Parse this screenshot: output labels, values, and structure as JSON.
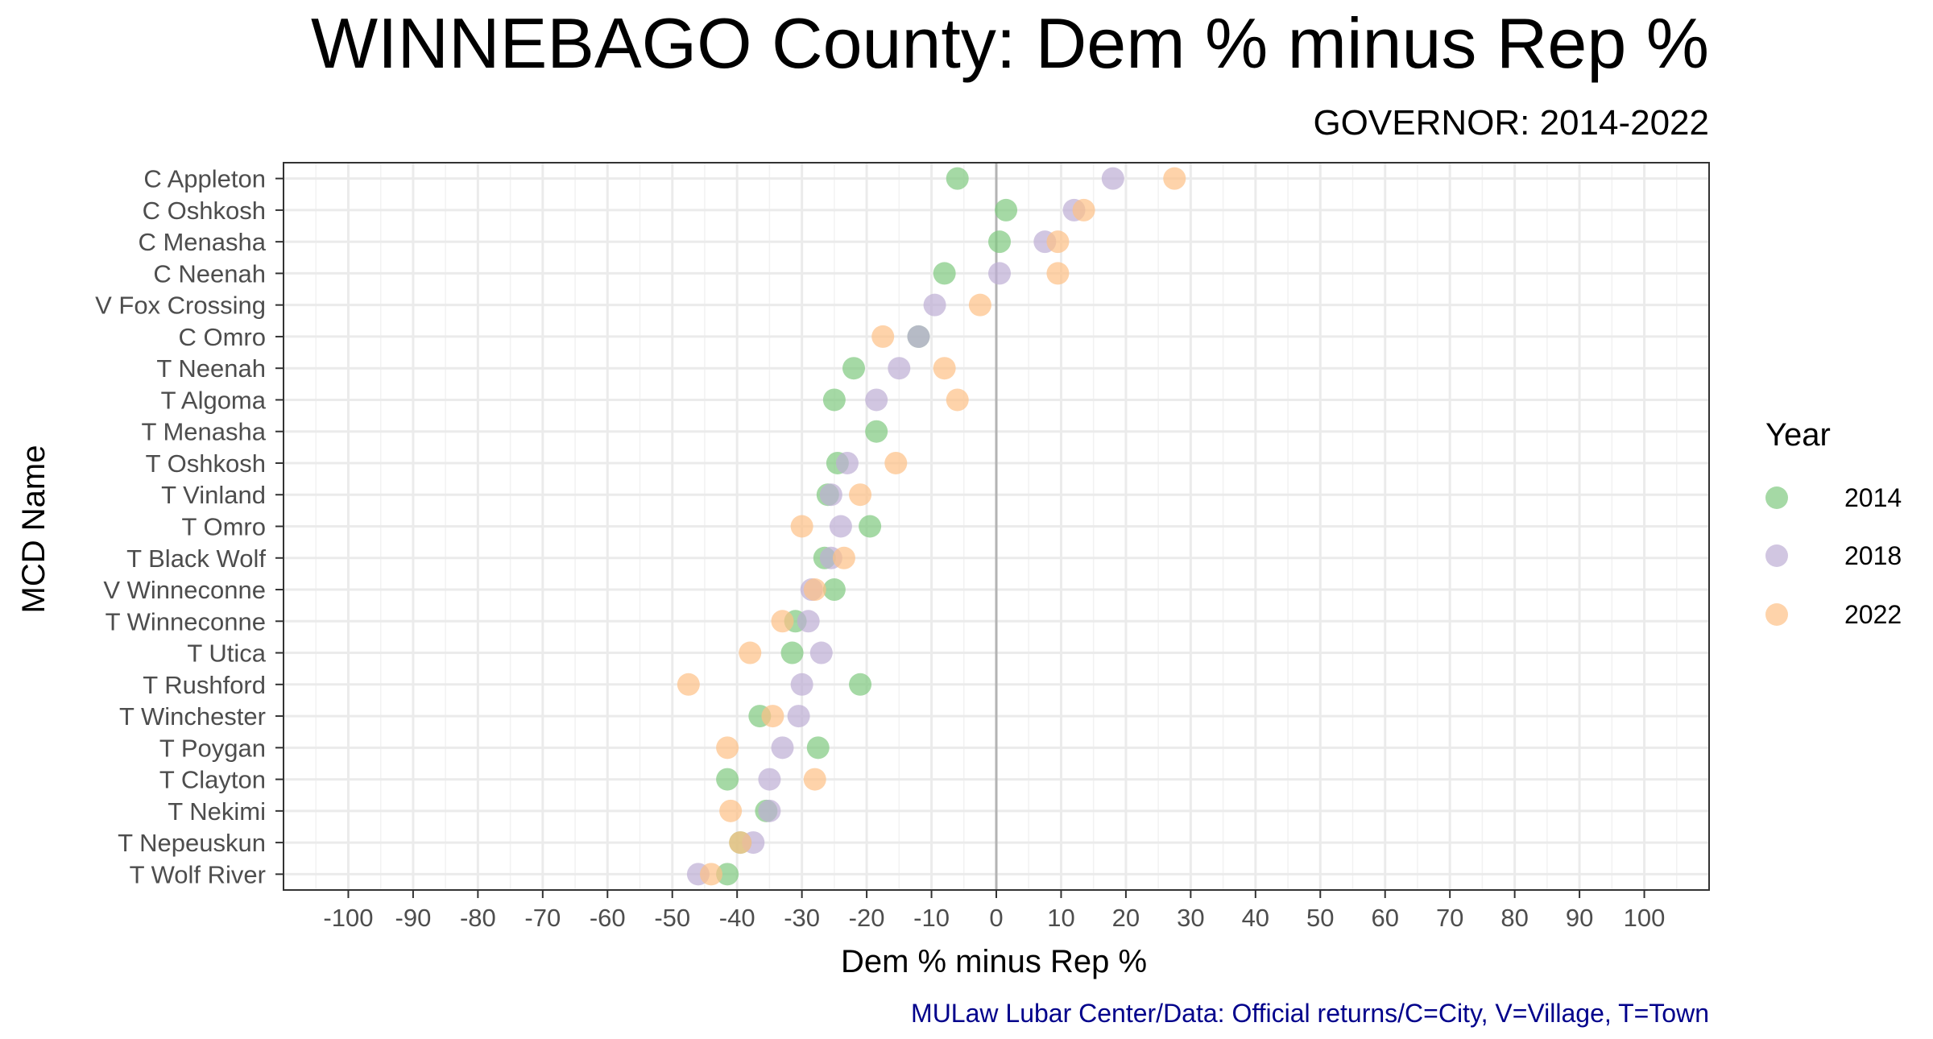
{
  "chart_data": {
    "type": "scatter",
    "title": "WINNEBAGO County: Dem % minus Rep %",
    "subtitle": "GOVERNOR: 2014-2022",
    "xlabel": "Dem % minus Rep %",
    "ylabel": "MCD Name",
    "caption": "MULaw Lubar Center/Data: Official returns/C=City, V=Village, T=Town",
    "xlim": [
      -110,
      110
    ],
    "x_ticks": [
      -100,
      -90,
      -80,
      -70,
      -60,
      -50,
      -40,
      -30,
      -20,
      -10,
      0,
      10,
      20,
      30,
      40,
      50,
      60,
      70,
      80,
      90,
      100
    ],
    "reference_line_x": 0,
    "grid": true,
    "legend": {
      "title": "Year",
      "position": "right",
      "entries": [
        {
          "label": "2014",
          "color": "#7fc97f"
        },
        {
          "label": "2018",
          "color": "#beaed4"
        },
        {
          "label": "2022",
          "color": "#fdc086"
        }
      ]
    },
    "categories": [
      "C Appleton",
      "C Oshkosh",
      "C Menasha",
      "C Neenah",
      "V Fox Crossing",
      "C Omro",
      "T Neenah",
      "T Algoma",
      "T Menasha",
      "T Oshkosh",
      "T Vinland",
      "T Omro",
      "T Black Wolf",
      "V Winneconne",
      "T Winneconne",
      "T Utica",
      "T Rushford",
      "T Winchester",
      "T Poygan",
      "T Clayton",
      "T Nekimi",
      "T Nepeuskun",
      "T Wolf River"
    ],
    "series": [
      {
        "name": "2014",
        "color": "#7fc97f",
        "values": [
          -6,
          1.5,
          0.5,
          -8,
          null,
          -12,
          -22,
          -25,
          -18.5,
          -24.5,
          -26,
          -19.5,
          -26.5,
          -25,
          -31,
          -31.5,
          -21,
          -36.5,
          -27.5,
          -41.5,
          -35.5,
          -39.5,
          -41.5
        ]
      },
      {
        "name": "2018",
        "color": "#beaed4",
        "values": [
          18,
          12,
          7.5,
          0.5,
          -9.5,
          -12,
          -15,
          -18.5,
          null,
          -23,
          -25.5,
          -24,
          -25.5,
          -28.5,
          -29,
          -27,
          -30,
          -30.5,
          -33,
          -35,
          -35,
          -37.5,
          -46
        ]
      },
      {
        "name": "2022",
        "color": "#fdc086",
        "values": [
          27.5,
          13.5,
          9.5,
          9.5,
          -2.5,
          -17.5,
          -8,
          -6,
          null,
          -15.5,
          -21,
          -30,
          -23.5,
          -28,
          -33,
          -38,
          -47.5,
          -34.5,
          -41.5,
          -28,
          -41,
          -39.5,
          -44
        ]
      }
    ]
  }
}
